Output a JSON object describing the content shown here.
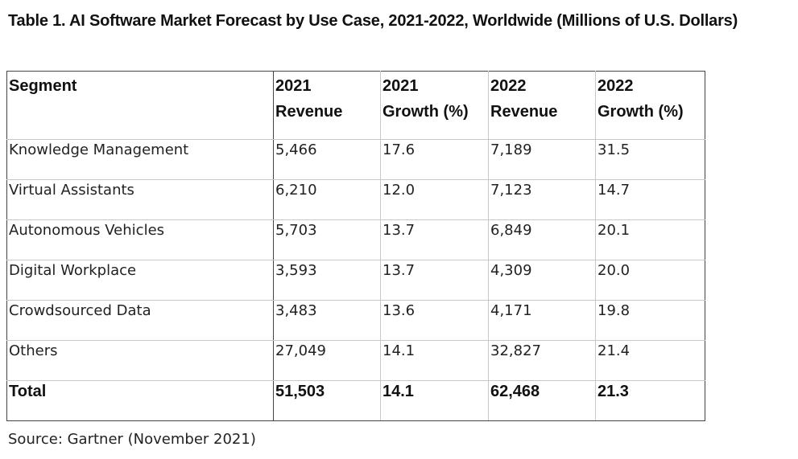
{
  "title": "Table 1. AI Software Market Forecast by Use Case, 2021-2022, Worldwide (Millions of U.S. Dollars)",
  "table": {
    "headers": [
      {
        "line1": "Segment",
        "line2": ""
      },
      {
        "line1": "2021",
        "line2": "Revenue"
      },
      {
        "line1": "2021",
        "line2": "Growth (%)"
      },
      {
        "line1": "2022",
        "line2": "Revenue"
      },
      {
        "line1": "2022",
        "line2": "Growth (%)"
      }
    ],
    "rows": [
      {
        "segment": "Knowledge Management",
        "rev2021": "5,466",
        "growth2021": "17.6",
        "rev2022": "7,189",
        "growth2022": "31.5"
      },
      {
        "segment": "Virtual Assistants",
        "rev2021": "6,210",
        "growth2021": "12.0",
        "rev2022": "7,123",
        "growth2022": "14.7"
      },
      {
        "segment": "Autonomous Vehicles",
        "rev2021": "5,703",
        "growth2021": "13.7",
        "rev2022": "6,849",
        "growth2022": "20.1"
      },
      {
        "segment": "Digital Workplace",
        "rev2021": "3,593",
        "growth2021": "13.7",
        "rev2022": "4,309",
        "growth2022": "20.0"
      },
      {
        "segment": "Crowdsourced Data",
        "rev2021": "3,483",
        "growth2021": "13.6",
        "rev2022": "4,171",
        "growth2022": "19.8"
      },
      {
        "segment": "Others",
        "rev2021": "27,049",
        "growth2021": "14.1",
        "rev2022": "32,827",
        "growth2022": "21.4"
      }
    ],
    "total": {
      "segment": "Total",
      "rev2021": "51,503",
      "growth2021": "14.1",
      "rev2022": "62,468",
      "growth2022": "21.3"
    }
  },
  "source": "Source: Gartner (November 2021)"
}
